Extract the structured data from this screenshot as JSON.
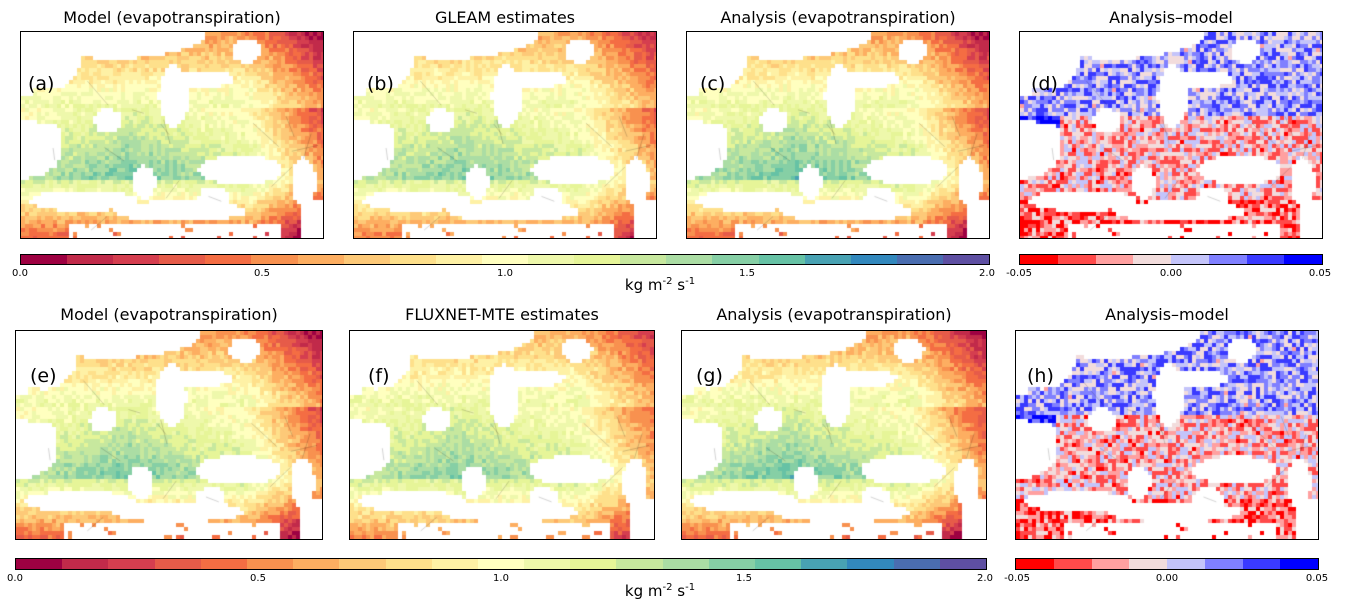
{
  "chart_data": {
    "type": "heatmap",
    "rows": [
      {
        "panels": [
          {
            "title": "Model (evapotranspiration)",
            "label": "(a)",
            "field": "model",
            "scale": "et"
          },
          {
            "title": "GLEAM estimates",
            "label": "(b)",
            "field": "gleam",
            "scale": "et"
          },
          {
            "title": "Analysis (evapotranspiration)",
            "label": "(c)",
            "field": "analysis",
            "scale": "et"
          },
          {
            "title": "Analysis–model",
            "label": "(d)",
            "field": "diff",
            "scale": "diff"
          }
        ]
      },
      {
        "panels": [
          {
            "title": "Model (evapotranspiration)",
            "label": "(e)",
            "field": "model",
            "scale": "et"
          },
          {
            "title": "FLUXNET-MTE estimates",
            "label": "(f)",
            "field": "fluxnet",
            "scale": "et"
          },
          {
            "title": "Analysis (evapotranspiration)",
            "label": "(g)",
            "field": "analysis",
            "scale": "et"
          },
          {
            "title": "Analysis–model",
            "label": "(h)",
            "field": "diff",
            "scale": "diff"
          }
        ]
      }
    ],
    "colorbars": {
      "et": {
        "range": [
          0.0,
          2.0
        ],
        "ticks": [
          "0.0",
          "0.5",
          "1.0",
          "1.5",
          "2.0"
        ],
        "unit": {
          "base": "kg m",
          "exp1": "-2",
          "mid": " s",
          "exp2": "-1"
        },
        "colors": [
          "#9e0142",
          "#c12a4a",
          "#d53e4f",
          "#e65b49",
          "#f46d43",
          "#f8914f",
          "#fdae61",
          "#fdc978",
          "#fee08b",
          "#fef1a5",
          "#ffffbf",
          "#eef8ab",
          "#e6f598",
          "#c7e89e",
          "#abdda4",
          "#86cfa5",
          "#66c2a5",
          "#48a2b3",
          "#3288bd",
          "#4a6db0",
          "#5e4fa2"
        ]
      },
      "diff": {
        "range": [
          -0.05,
          0.05
        ],
        "ticks": [
          "-0.05",
          "0.00",
          "0.05"
        ],
        "colors": [
          "#ff0000",
          "#ff4a4a",
          "#ffa0a0",
          "#f2dcdc",
          "#c4c4fa",
          "#8080ff",
          "#3a3aff",
          "#0000ff"
        ]
      }
    },
    "region": "Europe and North Africa",
    "grid": false
  }
}
